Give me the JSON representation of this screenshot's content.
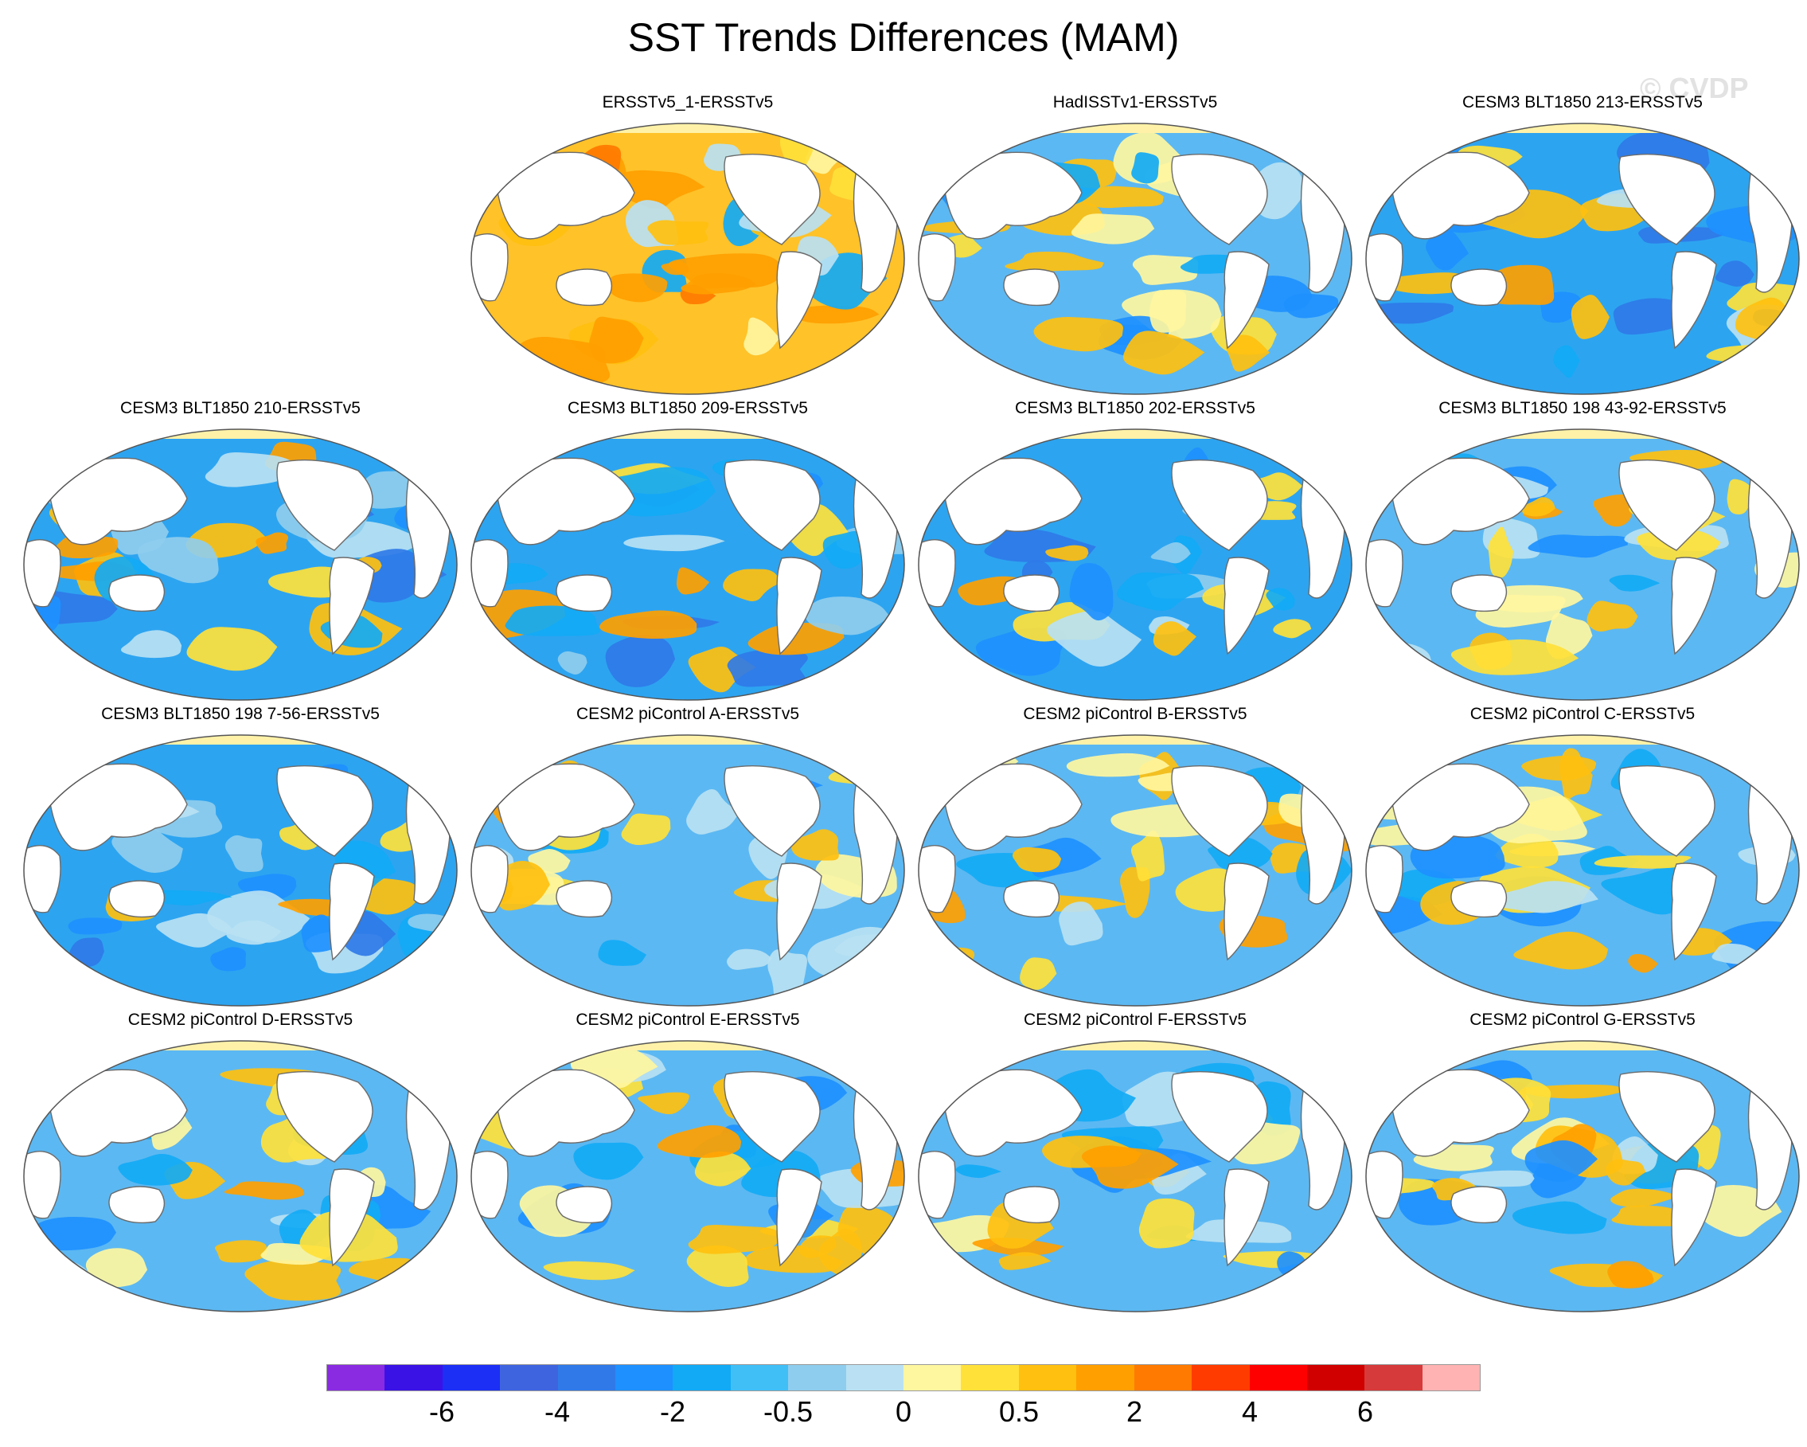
{
  "title": "SST Trends Differences (MAM)",
  "watermark": "© CVDP",
  "panels": [
    {
      "title": "ERSSTv5_1-ERSSTv5",
      "pattern": "warm",
      "seed": 11
    },
    {
      "title": "HadISSTv1-ERSSTv5",
      "pattern": "mixed",
      "seed": 23
    },
    {
      "title": "CESM3 BLT1850 213-ERSSTv5",
      "pattern": "cold",
      "seed": 37
    },
    {
      "title": "CESM3 BLT1850 210-ERSSTv5",
      "pattern": "cold",
      "seed": 41
    },
    {
      "title": "CESM3 BLT1850 209-ERSSTv5",
      "pattern": "cold",
      "seed": 53
    },
    {
      "title": "CESM3 BLT1850 202-ERSSTv5",
      "pattern": "cold",
      "seed": 67
    },
    {
      "title": "CESM3 BLT1850 198 43-92-ERSSTv5",
      "pattern": "mixed",
      "seed": 71
    },
    {
      "title": "CESM3 BLT1850 198 7-56-ERSSTv5",
      "pattern": "cold",
      "seed": 83
    },
    {
      "title": "CESM2 piControl A-ERSSTv5",
      "pattern": "mixed",
      "seed": 97
    },
    {
      "title": "CESM2 piControl B-ERSSTv5",
      "pattern": "mixed",
      "seed": 101
    },
    {
      "title": "CESM2 piControl C-ERSSTv5",
      "pattern": "mixed",
      "seed": 113
    },
    {
      "title": "CESM2 piControl D-ERSSTv5",
      "pattern": "mixed",
      "seed": 127
    },
    {
      "title": "CESM2 piControl E-ERSSTv5",
      "pattern": "mixed",
      "seed": 131
    },
    {
      "title": "CESM2 piControl F-ERSSTv5",
      "pattern": "mixed",
      "seed": 149
    },
    {
      "title": "CESM2 piControl G-ERSSTv5",
      "pattern": "mixed",
      "seed": 157
    }
  ],
  "colorbar": {
    "colors": [
      "#8a2be2",
      "#3a12e6",
      "#1b2ff5",
      "#3f64e0",
      "#2f7ae8",
      "#1e90ff",
      "#12aaf5",
      "#40bff7",
      "#8fcdee",
      "#b9e1f3",
      "#fff6a0",
      "#ffe13a",
      "#ffc00f",
      "#ff9f00",
      "#ff7a00",
      "#ff3b00",
      "#ff0000",
      "#d00000",
      "#d63a3a",
      "#ffb3b3"
    ],
    "labels": [
      "-6",
      "-4",
      "-2",
      "-0.5",
      "0",
      "0.5",
      "2",
      "4",
      "6"
    ]
  },
  "colors": {
    "land": "#ffffff",
    "sea_ice": "#fff2a8",
    "coast": "#6b6b6b",
    "ocean_base_cold": "#2da4f0",
    "ocean_base_mixed": "#5cb8f2",
    "ocean_base_warm": "#ffc229"
  }
}
